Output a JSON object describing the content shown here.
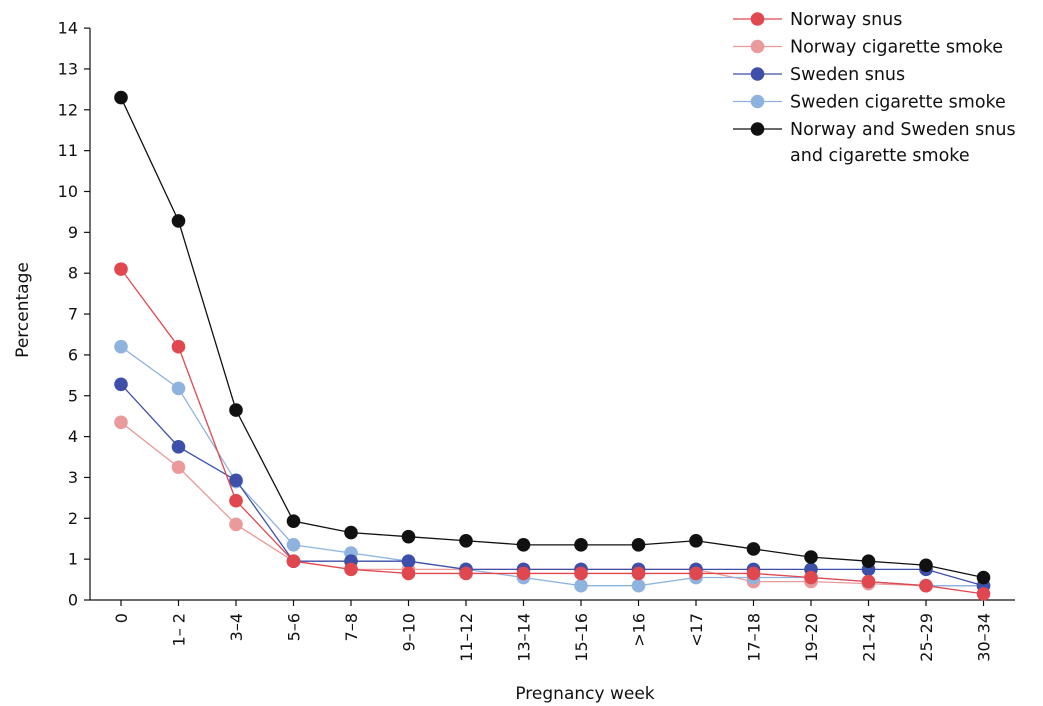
{
  "chart_data": {
    "type": "line",
    "xlabel": "Pregnancy week",
    "ylabel": "Percentage",
    "ylim": [
      0,
      14
    ],
    "yticks": [
      0,
      1,
      2,
      3,
      4,
      5,
      6,
      7,
      8,
      9,
      10,
      11,
      12,
      13,
      14
    ],
    "categories": [
      "0",
      "1– 2",
      "3–4",
      "5–6",
      "7–8",
      "9–10",
      "11–12",
      "13–14",
      "15–16",
      ">16",
      "<17",
      "17–18",
      "19–20",
      "21–24",
      "25–29",
      "30–34"
    ],
    "grid": false,
    "legend_position": "top-right",
    "series": [
      {
        "name": "Norway cigarette smoke",
        "color": "#ea9a9b",
        "values": [
          4.35,
          3.25,
          1.85,
          0.95,
          0.75,
          0.75,
          0.75,
          0.75,
          0.75,
          0.75,
          0.75,
          0.45,
          0.45,
          0.4,
          0.35,
          0.35
        ]
      },
      {
        "name": "Sweden cigarette smoke",
        "color": "#8fb3df",
        "values": [
          6.2,
          5.18,
          2.9,
          1.35,
          1.15,
          0.95,
          0.75,
          0.55,
          0.35,
          0.35,
          0.55,
          0.55,
          0.55,
          0.45,
          0.35,
          0.35
        ]
      },
      {
        "name": "Sweden snus",
        "color": "#3d4fa8",
        "values": [
          5.28,
          3.75,
          2.93,
          0.95,
          0.95,
          0.95,
          0.75,
          0.75,
          0.75,
          0.75,
          0.75,
          0.75,
          0.75,
          0.75,
          0.75,
          0.35
        ]
      },
      {
        "name": "Norway snus",
        "color": "#e1474e",
        "values": [
          8.1,
          6.2,
          2.43,
          0.95,
          0.75,
          0.65,
          0.65,
          0.65,
          0.65,
          0.65,
          0.65,
          0.65,
          0.55,
          0.45,
          0.35,
          0.15
        ]
      },
      {
        "name": "Norway and Sweden snus and cigarette smoke",
        "legend_lines": [
          "Norway and Sweden snus",
          "and cigarette smoke"
        ],
        "color": "#111111",
        "values": [
          12.3,
          9.28,
          4.65,
          1.93,
          1.65,
          1.55,
          1.45,
          1.35,
          1.35,
          1.35,
          1.45,
          1.25,
          1.05,
          0.95,
          0.85,
          0.55
        ]
      }
    ],
    "legend_order": [
      "Norway snus",
      "Norway cigarette smoke",
      "Sweden snus",
      "Sweden cigarette smoke",
      "Norway and Sweden snus and cigarette smoke"
    ]
  }
}
